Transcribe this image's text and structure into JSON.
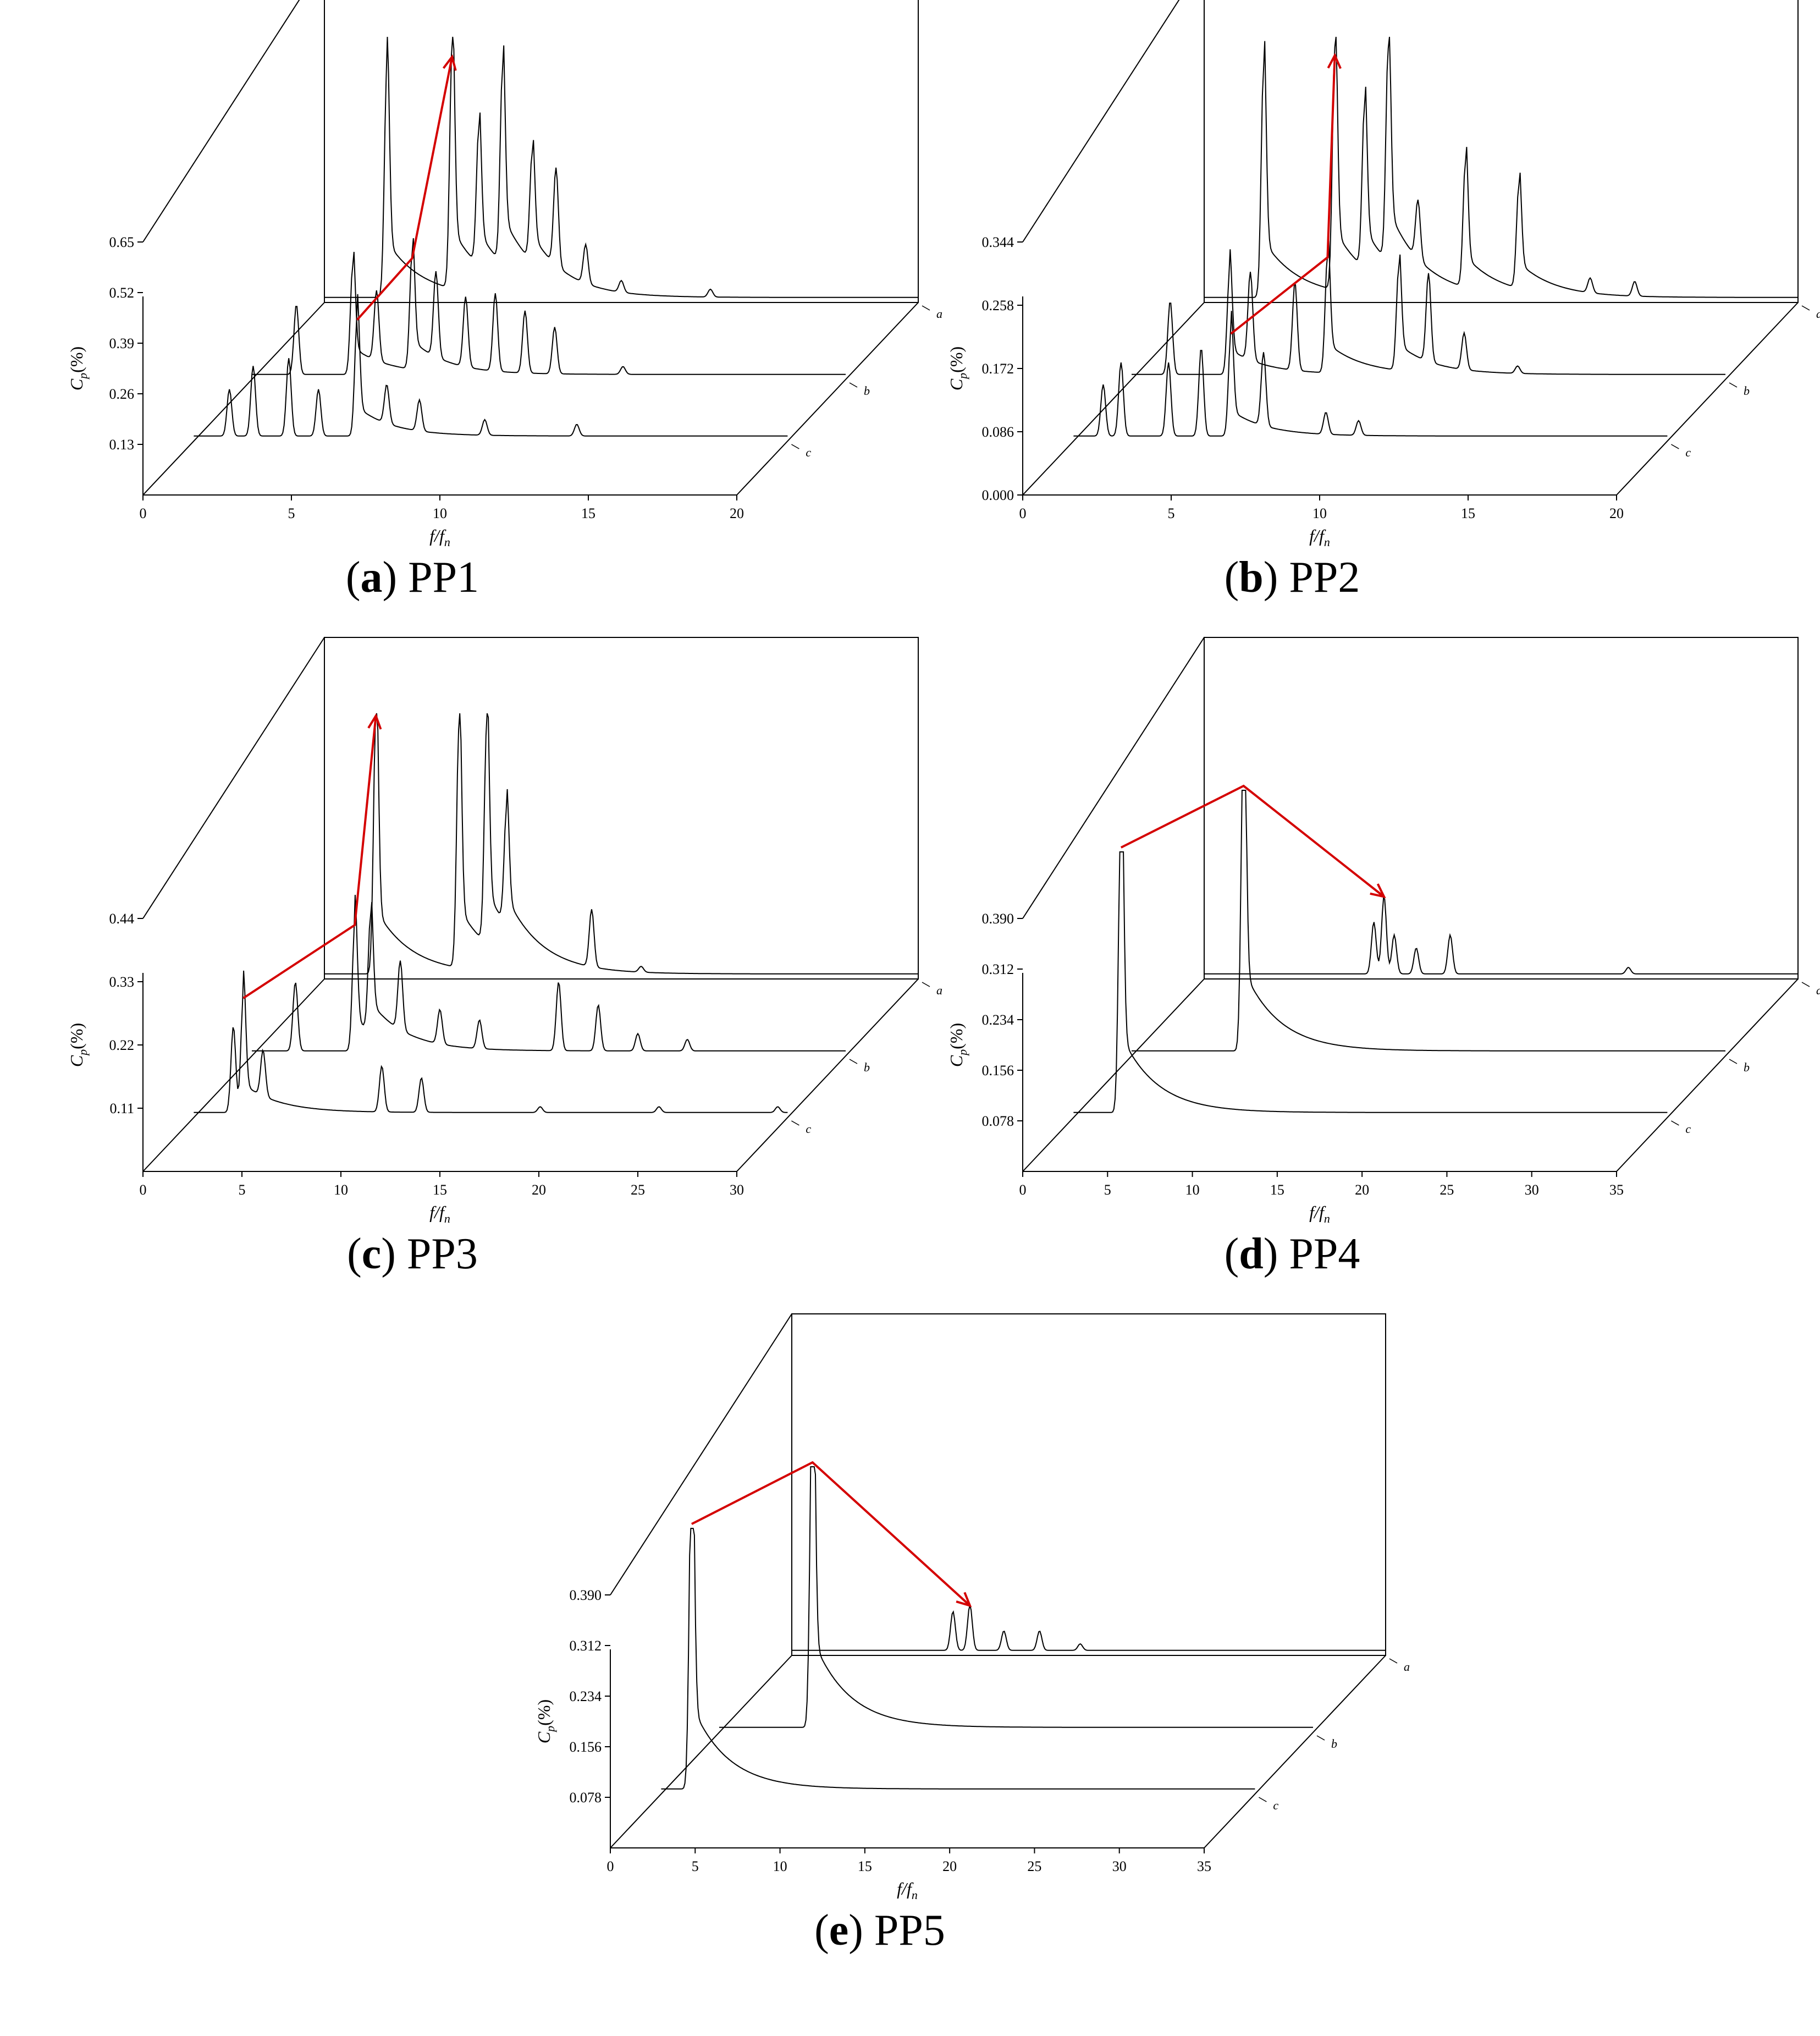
{
  "chart_data": [
    {
      "id": "pp1",
      "type": "line",
      "caption_letter": "a",
      "caption_name": "PP1",
      "xlabel": "f/f",
      "xlabel_sub": "n",
      "ylabel": "C",
      "ylabel_sub": "p",
      "ylabel_unit": "(%)",
      "xlim": [
        0,
        20
      ],
      "ylim": [
        0,
        0.65
      ],
      "xticks": [
        0,
        5,
        10,
        15,
        20
      ],
      "yticks": [
        "0.13",
        "0.26",
        "0.39",
        "0.52",
        "0.65"
      ],
      "series_order_back_to_front": [
        "a",
        "b",
        "c"
      ],
      "series": [
        {
          "name": "a",
          "peaks": [
            [
              2.1,
              0.58
            ],
            [
              4.3,
              0.62
            ],
            [
              5.2,
              0.35
            ],
            [
              6.0,
              0.5
            ],
            [
              7.0,
              0.28
            ],
            [
              7.8,
              0.25
            ],
            [
              8.8,
              0.1
            ],
            [
              10.0,
              0.03
            ],
            [
              13.0,
              0.02
            ]
          ]
        },
        {
          "name": "b",
          "peaks": [
            [
              1.5,
              0.18
            ],
            [
              3.4,
              0.28
            ],
            [
              4.2,
              0.18
            ],
            [
              5.4,
              0.3
            ],
            [
              6.2,
              0.22
            ],
            [
              7.2,
              0.18
            ],
            [
              8.2,
              0.2
            ],
            [
              9.2,
              0.16
            ],
            [
              10.2,
              0.12
            ],
            [
              12.5,
              0.02
            ]
          ]
        },
        {
          "name": "c",
          "peaks": [
            [
              1.2,
              0.12
            ],
            [
              2.0,
              0.18
            ],
            [
              3.2,
              0.2
            ],
            [
              4.2,
              0.12
            ],
            [
              5.5,
              0.3
            ],
            [
              6.5,
              0.1
            ],
            [
              7.6,
              0.08
            ],
            [
              9.8,
              0.04
            ],
            [
              12.9,
              0.03
            ]
          ]
        }
      ],
      "annotation": {
        "type": "arrows",
        "color": "#d40000"
      }
    },
    {
      "id": "pp2",
      "type": "line",
      "caption_letter": "b",
      "caption_name": "PP2",
      "xlabel": "f/f",
      "xlabel_sub": "n",
      "ylabel": "C",
      "ylabel_sub": "p",
      "ylabel_unit": "(%)",
      "xlim": [
        0,
        20
      ],
      "ylim": [
        0,
        0.344
      ],
      "xticks": [
        0,
        5,
        10,
        15,
        20
      ],
      "yticks": [
        "0.000",
        "0.086",
        "0.172",
        "0.258",
        "0.344"
      ],
      "series_order_back_to_front": [
        "a",
        "b",
        "c"
      ],
      "series": [
        {
          "name": "a",
          "peaks": [
            [
              2.0,
              0.31
            ],
            [
              4.4,
              0.33
            ],
            [
              5.4,
              0.22
            ],
            [
              6.2,
              0.29
            ],
            [
              7.2,
              0.08
            ],
            [
              8.8,
              0.17
            ],
            [
              10.6,
              0.14
            ],
            [
              13.0,
              0.02
            ],
            [
              14.5,
              0.02
            ]
          ]
        },
        {
          "name": "b",
          "peaks": [
            [
              1.3,
              0.1
            ],
            [
              3.3,
              0.14
            ],
            [
              4.0,
              0.12
            ],
            [
              5.5,
              0.12
            ],
            [
              6.6,
              0.16
            ],
            [
              9.0,
              0.14
            ],
            [
              10.0,
              0.12
            ],
            [
              11.2,
              0.05
            ],
            [
              13.0,
              0.01
            ]
          ]
        },
        {
          "name": "c",
          "peaks": [
            [
              1.0,
              0.07
            ],
            [
              1.6,
              0.1
            ],
            [
              3.2,
              0.1
            ],
            [
              4.3,
              0.12
            ],
            [
              5.3,
              0.14
            ],
            [
              6.4,
              0.1
            ],
            [
              8.5,
              0.03
            ],
            [
              9.6,
              0.02
            ]
          ]
        }
      ],
      "annotation": {
        "type": "arrows",
        "color": "#d40000"
      }
    },
    {
      "id": "pp3",
      "type": "line",
      "caption_letter": "c",
      "caption_name": "PP3",
      "xlabel": "f/f",
      "xlabel_sub": "n",
      "ylabel": "C",
      "ylabel_sub": "p",
      "ylabel_unit": "(%)",
      "xlim": [
        0,
        30
      ],
      "ylim": [
        0,
        0.44
      ],
      "xticks": [
        0,
        5,
        10,
        15,
        20,
        25,
        30
      ],
      "yticks": [
        "0.11",
        "0.22",
        "0.33",
        "0.44"
      ],
      "series_order_back_to_front": [
        "a",
        "b",
        "c"
      ],
      "series": [
        {
          "name": "a",
          "peaks": [
            [
              2.6,
              0.45
            ],
            [
              6.8,
              0.42
            ],
            [
              8.2,
              0.38
            ],
            [
              9.2,
              0.2
            ],
            [
              13.5,
              0.1
            ],
            [
              16.0,
              0.01
            ]
          ]
        },
        {
          "name": "b",
          "peaks": [
            [
              2.2,
              0.12
            ],
            [
              5.2,
              0.22
            ],
            [
              6.0,
              0.2
            ],
            [
              7.5,
              0.12
            ],
            [
              9.5,
              0.06
            ],
            [
              11.5,
              0.05
            ],
            [
              15.5,
              0.12
            ],
            [
              17.5,
              0.08
            ],
            [
              19.5,
              0.03
            ],
            [
              22.0,
              0.02
            ]
          ]
        },
        {
          "name": "c",
          "peaks": [
            [
              2.0,
              0.15
            ],
            [
              2.5,
              0.2
            ],
            [
              3.5,
              0.08
            ],
            [
              9.5,
              0.08
            ],
            [
              11.5,
              0.06
            ],
            [
              17.5,
              0.01
            ],
            [
              23.5,
              0.01
            ],
            [
              29.5,
              0.01
            ]
          ]
        }
      ],
      "annotation": {
        "type": "arrows",
        "color": "#d40000"
      }
    },
    {
      "id": "pp4",
      "type": "line",
      "caption_letter": "d",
      "caption_name": "PP4",
      "xlabel": "f/f",
      "xlabel_sub": "n",
      "ylabel": "C",
      "ylabel_sub": "p",
      "ylabel_unit": "(%)",
      "xlim": [
        0,
        35
      ],
      "ylim": [
        0,
        0.39
      ],
      "xticks": [
        0,
        5,
        10,
        15,
        20,
        25,
        30,
        35
      ],
      "yticks": [
        "0.078",
        "0.156",
        "0.234",
        "0.312",
        "0.390"
      ],
      "series_order_back_to_front": [
        "a",
        "b",
        "c"
      ],
      "series": [
        {
          "name": "a",
          "peaks": [
            [
              10.0,
              0.08
            ],
            [
              10.6,
              0.12
            ],
            [
              11.2,
              0.06
            ],
            [
              12.5,
              0.04
            ],
            [
              14.5,
              0.06
            ],
            [
              25.0,
              0.01
            ]
          ]
        },
        {
          "name": "b",
          "peaks": [
            [
              6.6,
              0.5
            ]
          ]
        },
        {
          "name": "c",
          "peaks": [
            [
              2.8,
              0.48
            ]
          ]
        }
      ],
      "annotation": {
        "type": "arrows",
        "color": "#d40000"
      }
    },
    {
      "id": "pp5",
      "type": "line",
      "caption_letter": "e",
      "caption_name": "PP5",
      "xlabel": "f/f",
      "xlabel_sub": "n",
      "ylabel": "C",
      "ylabel_sub": "p",
      "ylabel_unit": "(%)",
      "xlim": [
        0,
        35
      ],
      "ylim": [
        0,
        0.39
      ],
      "xticks": [
        0,
        5,
        10,
        15,
        20,
        25,
        30,
        35
      ],
      "yticks": [
        "0.078",
        "0.156",
        "0.234",
        "0.312",
        "0.390"
      ],
      "series_order_back_to_front": [
        "a",
        "b",
        "c"
      ],
      "series": [
        {
          "name": "a",
          "peaks": [
            [
              9.5,
              0.06
            ],
            [
              10.5,
              0.07
            ],
            [
              12.5,
              0.03
            ],
            [
              14.6,
              0.03
            ],
            [
              17.0,
              0.01
            ]
          ]
        },
        {
          "name": "b",
          "peaks": [
            [
              5.5,
              0.55
            ]
          ]
        },
        {
          "name": "c",
          "peaks": [
            [
              1.8,
              0.52
            ]
          ]
        }
      ],
      "annotation": {
        "type": "arrows",
        "color": "#d40000"
      }
    }
  ]
}
